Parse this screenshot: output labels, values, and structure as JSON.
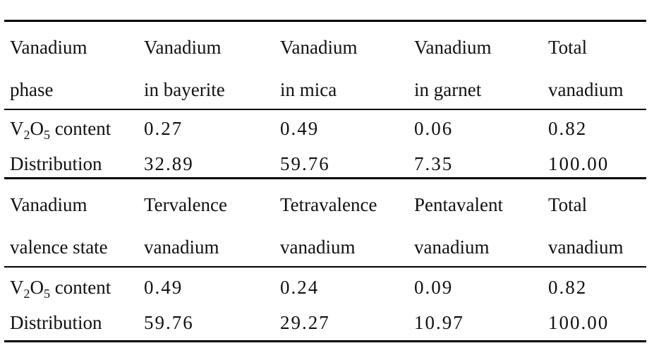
{
  "section1": {
    "header": {
      "line1": [
        "Vanadium",
        "Vanadium",
        "Vanadium",
        "Vanadium",
        "Total"
      ],
      "line2": [
        "phase",
        "in bayerite",
        "in mica",
        "in garnet",
        "vanadium"
      ]
    },
    "rows": [
      {
        "label_prefix": "V",
        "label_sub1": "2",
        "label_mid": "O",
        "label_sub2": "5",
        "label_suffix": " content",
        "values": [
          "0.27",
          "0.49",
          "0.06",
          "0.82"
        ]
      },
      {
        "label": "Distribution",
        "values": [
          "32.89",
          "59.76",
          "7.35",
          "100.00"
        ]
      }
    ]
  },
  "section2": {
    "header": {
      "line1": [
        "Vanadium",
        "Tervalence",
        "Tetravalence",
        "Pentavalent",
        "Total"
      ],
      "line2": [
        "valence state",
        "vanadium",
        "vanadium",
        "vanadium",
        "vanadium"
      ]
    },
    "rows": [
      {
        "label_prefix": "V",
        "label_sub1": "2",
        "label_mid": "O",
        "label_sub2": "5",
        "label_suffix": " content",
        "values": [
          "0.49",
          "0.24",
          "0.09",
          "0.82"
        ]
      },
      {
        "label": "Distribution",
        "values": [
          "59.76",
          "29.27",
          "10.97",
          "100.00"
        ]
      }
    ]
  }
}
